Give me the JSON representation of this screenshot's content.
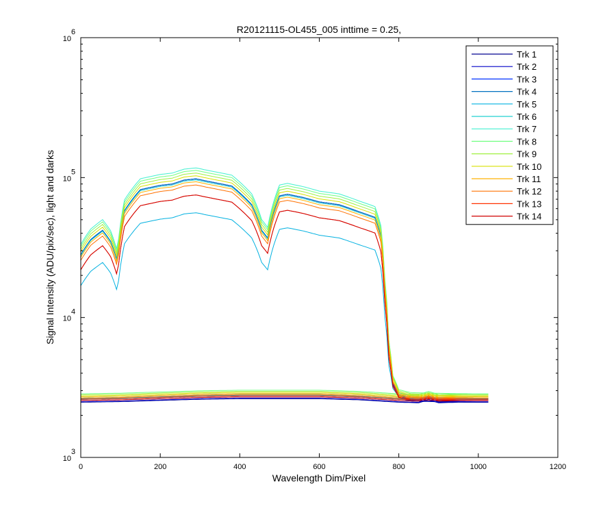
{
  "chart_data": {
    "type": "line",
    "title": "R20121115-OL455_005 inttime = 0.25,",
    "xlabel": "Wavelength Dim/Pixel",
    "ylabel": "Signal Intensity (ADU/pix/sec), light and darks",
    "xlim": [
      0,
      1200
    ],
    "ylim": [
      1000,
      1000000
    ],
    "yscale": "log",
    "grid": false,
    "legend_position": "top-right",
    "x_ticks": [
      "0",
      "200",
      "400",
      "600",
      "800",
      "1000",
      "1200"
    ],
    "y_ticks": [
      {
        "base": "10",
        "exp": "3"
      },
      {
        "base": "10",
        "exp": "4"
      },
      {
        "base": "10",
        "exp": "5"
      },
      {
        "base": "10",
        "exp": "6"
      }
    ],
    "series": [
      {
        "name": "Trk 1",
        "color": "#00008f",
        "light_scale": 1.0,
        "dark_level": 2480
      },
      {
        "name": "Trk 2",
        "color": "#0000c8",
        "light_scale": 1.0,
        "dark_level": 2500
      },
      {
        "name": "Trk 3",
        "color": "#0030ff",
        "light_scale": 1.0,
        "dark_level": 2550
      },
      {
        "name": "Trk 4",
        "color": "#0070c0",
        "light_scale": 1.0,
        "dark_level": 2600
      },
      {
        "name": "Trk 5",
        "color": "#00b0e0",
        "light_scale": 0.56,
        "dark_level": 2620
      },
      {
        "name": "Trk 6",
        "color": "#20d0d0",
        "light_scale": 0.98,
        "dark_level": 2650
      },
      {
        "name": "Trk 7",
        "color": "#40f0d0",
        "light_scale": 1.2,
        "dark_level": 2700
      },
      {
        "name": "Trk 8",
        "color": "#70ff80",
        "light_scale": 1.15,
        "dark_level": 2850
      },
      {
        "name": "Trk 9",
        "color": "#a0f040",
        "light_scale": 1.1,
        "dark_level": 2800
      },
      {
        "name": "Trk 10",
        "color": "#d8e000",
        "light_scale": 1.05,
        "dark_level": 2750
      },
      {
        "name": "Trk 11",
        "color": "#ffb000",
        "light_scale": 0.95,
        "dark_level": 2700
      },
      {
        "name": "Trk 12",
        "color": "#ff7000",
        "light_scale": 0.9,
        "dark_level": 2650
      },
      {
        "name": "Trk 13",
        "color": "#ff3000",
        "light_scale": 0.76,
        "dark_level": 2600
      },
      {
        "name": "Trk 14",
        "color": "#d00000",
        "light_scale": 0.76,
        "dark_level": 2550
      }
    ],
    "base_light_curve": {
      "x": [
        0,
        25,
        55,
        75,
        92,
        110,
        150,
        200,
        230,
        260,
        290,
        320,
        380,
        430,
        455,
        470,
        485,
        500,
        520,
        560,
        600,
        650,
        700,
        740,
        755,
        765,
        775,
        785,
        800,
        830,
        870,
        900,
        950,
        1000,
        1025
      ],
      "y": [
        28000,
        36000,
        42000,
        35000,
        25000,
        58000,
        82000,
        88000,
        90000,
        96000,
        98000,
        94000,
        87000,
        64000,
        42000,
        37000,
        56000,
        74000,
        76000,
        72000,
        67000,
        64000,
        57000,
        52000,
        38000,
        16000,
        6000,
        3400,
        2700,
        2580,
        2560,
        2550,
        2540,
        2530,
        2530
      ]
    },
    "dark_curve_shape": {
      "x": [
        0,
        100,
        200,
        300,
        400,
        500,
        600,
        700,
        750,
        800,
        850,
        875,
        900,
        950,
        1000,
        1025
      ],
      "factor": [
        1.0,
        1.01,
        1.03,
        1.05,
        1.06,
        1.06,
        1.06,
        1.04,
        1.02,
        1.0,
        0.99,
        1.04,
        0.99,
        1.0,
        1.0,
        1.0
      ]
    },
    "x_max_data": 1025
  }
}
